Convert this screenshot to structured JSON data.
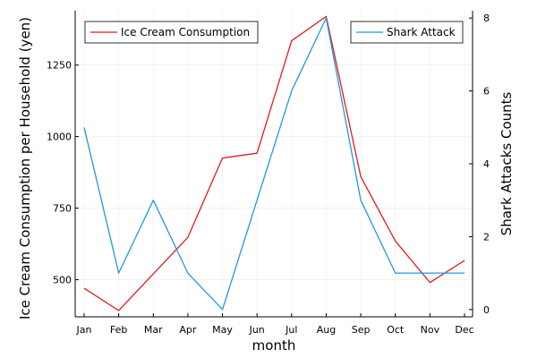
{
  "chart_data": {
    "type": "line",
    "categories": [
      "Jan",
      "Feb",
      "Mar",
      "Apr",
      "May",
      "Jun",
      "Jul",
      "Aug",
      "Sep",
      "Oct",
      "Nov",
      "Dec"
    ],
    "xlabel": "month",
    "y_left": {
      "label": "Ice Cream Consumption per Household (yen)",
      "ticks": [
        500,
        750,
        1000,
        1250
      ],
      "range": [
        370,
        1440
      ]
    },
    "y_right": {
      "label": "Shark Attacks Counts",
      "ticks": [
        0,
        2,
        4,
        6,
        8
      ],
      "range": [
        -0.2,
        8.2
      ]
    },
    "series": [
      {
        "name": "Ice Cream Consumption",
        "axis": "left",
        "color": "#e41a1c",
        "values": [
          470,
          392,
          520,
          648,
          925,
          942,
          1335,
          1420,
          860,
          635,
          490,
          567
        ]
      },
      {
        "name": "Shark Attack",
        "axis": "right",
        "color": "#1f9ae0",
        "values": [
          5,
          1,
          3,
          1,
          0,
          3,
          6,
          8,
          3,
          1,
          1,
          1
        ]
      }
    ],
    "grid": true,
    "legend": {
      "left_series": "top-left",
      "right_series": "top-right"
    }
  }
}
